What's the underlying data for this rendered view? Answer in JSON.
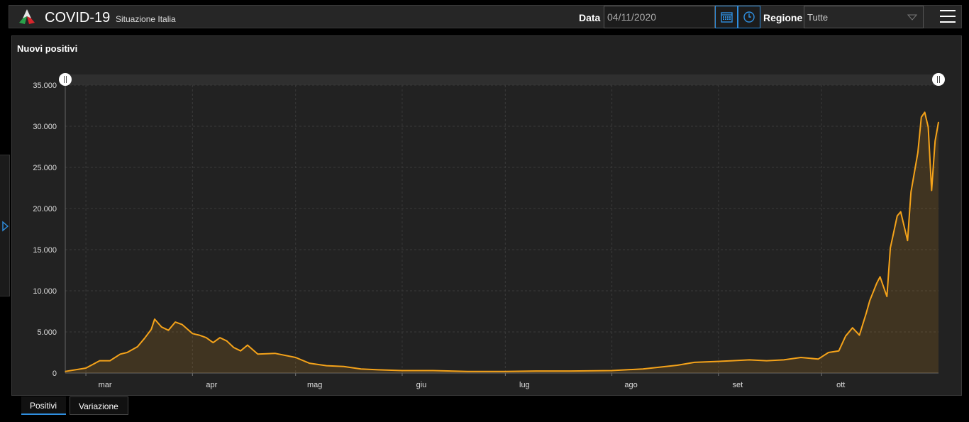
{
  "header": {
    "title": "COVID-19",
    "subtitle": "Situazione Italia",
    "date_label": "Data",
    "date_value": "04/11/2020",
    "region_label": "Regione",
    "region_value": "Tutte"
  },
  "panel": {
    "title": "Nuovi positivi"
  },
  "tabs": [
    {
      "label": "Positivi"
    },
    {
      "label": "Variazione"
    }
  ],
  "colors": {
    "line": "#f5a31a",
    "accent": "#2f8fe0"
  },
  "icons": [
    "logo-icon",
    "calendar-icon",
    "clock-icon",
    "chevron-down-icon",
    "menu-icon",
    "expand-arrow-icon",
    "range-handle-icon"
  ],
  "chart_data": {
    "type": "area",
    "title": "Nuovi positivi",
    "ylim": [
      0,
      35000
    ],
    "yticks": [
      0,
      5000,
      10000,
      15000,
      20000,
      25000,
      30000,
      35000
    ],
    "ytick_labels": [
      "0",
      "5.000",
      "10.000",
      "15.000",
      "20.000",
      "25.000",
      "30.000",
      "35.000"
    ],
    "xticks": [
      "mar",
      "apr",
      "mag",
      "giu",
      "lug",
      "ago",
      "set",
      "ott"
    ],
    "xtick_dates": [
      "2020-03-01",
      "2020-04-01",
      "2020-05-01",
      "2020-06-01",
      "2020-07-01",
      "2020-08-01",
      "2020-09-01",
      "2020-10-01"
    ],
    "x_range": [
      "2020-02-24",
      "2020-11-04"
    ],
    "grid": true,
    "series": [
      {
        "x": [
          "2020-02-24",
          "2020-03-01",
          "2020-03-05",
          "2020-03-08",
          "2020-03-11",
          "2020-03-13",
          "2020-03-16",
          "2020-03-18",
          "2020-03-20",
          "2020-03-21",
          "2020-03-23",
          "2020-03-25",
          "2020-03-27",
          "2020-03-29",
          "2020-04-01",
          "2020-04-03",
          "2020-04-05",
          "2020-04-07",
          "2020-04-09",
          "2020-04-11",
          "2020-04-13",
          "2020-04-15",
          "2020-04-17",
          "2020-04-20",
          "2020-04-25",
          "2020-05-01",
          "2020-05-05",
          "2020-05-10",
          "2020-05-15",
          "2020-05-20",
          "2020-05-25",
          "2020-06-01",
          "2020-06-10",
          "2020-06-20",
          "2020-07-01",
          "2020-07-10",
          "2020-07-20",
          "2020-08-01",
          "2020-08-10",
          "2020-08-20",
          "2020-08-25",
          "2020-08-31",
          "2020-09-05",
          "2020-09-10",
          "2020-09-15",
          "2020-09-20",
          "2020-09-25",
          "2020-09-30",
          "2020-10-03",
          "2020-10-06",
          "2020-10-08",
          "2020-10-10",
          "2020-10-12",
          "2020-10-14",
          "2020-10-15",
          "2020-10-17",
          "2020-10-18",
          "2020-10-20",
          "2020-10-21",
          "2020-10-23",
          "2020-10-24",
          "2020-10-26",
          "2020-10-27",
          "2020-10-29",
          "2020-10-30",
          "2020-10-31",
          "2020-11-01",
          "2020-11-02",
          "2020-11-03",
          "2020-11-04"
        ],
        "values": [
          200,
          600,
          1500,
          1500,
          2300,
          2500,
          3200,
          4200,
          5300,
          6550,
          5600,
          5200,
          6200,
          5900,
          4800,
          4600,
          4300,
          3700,
          4300,
          3900,
          3100,
          2700,
          3400,
          2300,
          2400,
          1900,
          1200,
          900,
          800,
          500,
          400,
          300,
          300,
          200,
          200,
          250,
          250,
          300,
          500,
          950,
          1300,
          1400,
          1500,
          1600,
          1500,
          1600,
          1900,
          1700,
          2500,
          2700,
          4500,
          5500,
          4600,
          7300,
          8800,
          10900,
          11700,
          9300,
          15200,
          19100,
          19600,
          16100,
          22000,
          26800,
          31100,
          31700,
          29900,
          22200,
          28200,
          30500
        ]
      }
    ]
  }
}
